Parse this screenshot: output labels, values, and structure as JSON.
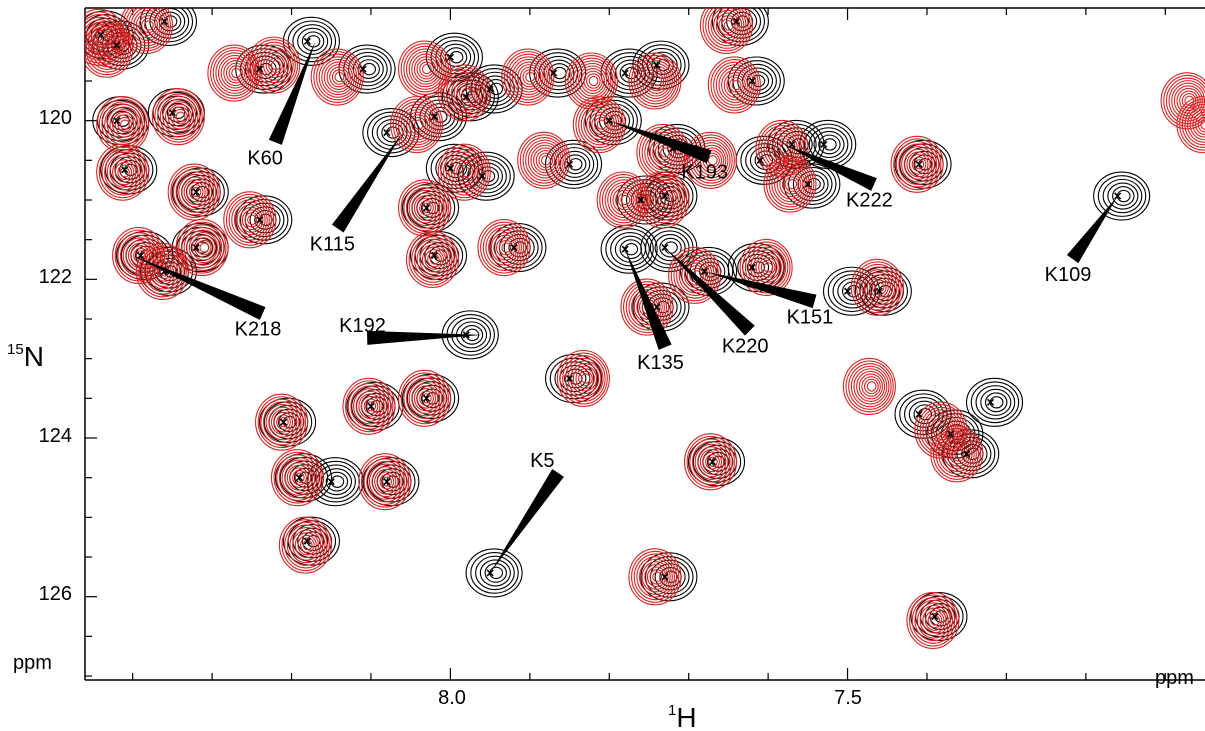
{
  "chart_data": {
    "type": "scatter",
    "title": "",
    "x_axis": {
      "label_sup": "1",
      "label_main": "H",
      "unit": "ppm",
      "range": [
        8.46,
        7.05
      ],
      "ticks": [
        {
          "value": 8.0,
          "label": "8.0"
        },
        {
          "value": 7.5,
          "label": "7.5"
        }
      ],
      "minor_step": 0.1
    },
    "y_axis": {
      "label_sup": "15",
      "label_main": "N",
      "unit": "ppm",
      "range": [
        118.58,
        127.05
      ],
      "ticks": [
        {
          "value": 120,
          "label": "120"
        },
        {
          "value": 122,
          "label": "122"
        },
        {
          "value": 124,
          "label": "124"
        },
        {
          "value": 126,
          "label": "126"
        }
      ],
      "minor_step": 0.5
    },
    "series": [
      {
        "color": "#000000",
        "peaks": [
          [
            8.36,
            118.75
          ],
          [
            8.44,
            118.92
          ],
          [
            8.42,
            119.05
          ],
          [
            8.24,
            119.35
          ],
          [
            8.18,
            119.0
          ],
          [
            8.11,
            119.35
          ],
          [
            8.0,
            119.2
          ],
          [
            7.95,
            119.6
          ],
          [
            7.87,
            119.4
          ],
          [
            7.78,
            119.4
          ],
          [
            7.74,
            119.3
          ],
          [
            7.64,
            118.75
          ],
          [
            7.62,
            119.5
          ],
          [
            8.42,
            120.0
          ],
          [
            8.35,
            119.9
          ],
          [
            8.02,
            119.95
          ],
          [
            7.98,
            119.7
          ],
          [
            8.08,
            120.15
          ],
          [
            7.8,
            120.0
          ],
          [
            7.72,
            120.35
          ],
          [
            7.61,
            120.5
          ],
          [
            7.53,
            120.3
          ],
          [
            7.57,
            120.3
          ],
          [
            7.55,
            120.8
          ],
          [
            8.32,
            120.9
          ],
          [
            8.24,
            121.25
          ],
          [
            8.41,
            120.62
          ],
          [
            8.03,
            121.1
          ],
          [
            8.0,
            120.6
          ],
          [
            7.96,
            120.7
          ],
          [
            7.85,
            120.55
          ],
          [
            7.76,
            121.0
          ],
          [
            7.73,
            120.95
          ],
          [
            7.41,
            120.55
          ],
          [
            8.32,
            121.6
          ],
          [
            8.36,
            121.9
          ],
          [
            8.39,
            121.7
          ],
          [
            8.02,
            121.7
          ],
          [
            7.92,
            121.6
          ],
          [
            7.78,
            121.62
          ],
          [
            7.73,
            121.6
          ],
          [
            7.68,
            121.9
          ],
          [
            7.62,
            121.85
          ],
          [
            7.5,
            122.15
          ],
          [
            7.46,
            122.15
          ],
          [
            7.16,
            120.95
          ],
          [
            7.98,
            122.7
          ],
          [
            7.85,
            123.25
          ],
          [
            7.74,
            122.35
          ],
          [
            8.21,
            123.8
          ],
          [
            8.1,
            123.6
          ],
          [
            8.03,
            123.5
          ],
          [
            8.19,
            124.5
          ],
          [
            8.15,
            124.55
          ],
          [
            8.08,
            124.55
          ],
          [
            7.67,
            124.3
          ],
          [
            7.37,
            123.95
          ],
          [
            7.41,
            123.7
          ],
          [
            7.35,
            124.2
          ],
          [
            7.32,
            123.55
          ],
          [
            8.18,
            125.3
          ],
          [
            7.95,
            125.7
          ],
          [
            7.73,
            125.75
          ],
          [
            7.39,
            126.25
          ]
        ]
      },
      {
        "color": "#dd2222",
        "peaks": [
          [
            8.38,
            118.8
          ],
          [
            8.44,
            118.95
          ],
          [
            8.43,
            119.1
          ],
          [
            8.27,
            119.4
          ],
          [
            8.22,
            119.3
          ],
          [
            8.14,
            119.45
          ],
          [
            8.03,
            119.35
          ],
          [
            7.98,
            119.65
          ],
          [
            7.9,
            119.45
          ],
          [
            7.82,
            119.5
          ],
          [
            7.74,
            119.5
          ],
          [
            7.65,
            118.8
          ],
          [
            7.64,
            119.55
          ],
          [
            8.41,
            120.05
          ],
          [
            8.34,
            119.95
          ],
          [
            8.04,
            120.05
          ],
          [
            7.81,
            120.05
          ],
          [
            7.73,
            120.4
          ],
          [
            7.67,
            120.5
          ],
          [
            7.58,
            120.35
          ],
          [
            7.57,
            120.8
          ],
          [
            8.32,
            120.9
          ],
          [
            8.25,
            121.25
          ],
          [
            8.41,
            120.65
          ],
          [
            8.03,
            121.1
          ],
          [
            7.98,
            120.65
          ],
          [
            7.88,
            120.5
          ],
          [
            7.78,
            121.0
          ],
          [
            7.73,
            121.0
          ],
          [
            7.41,
            120.55
          ],
          [
            8.31,
            121.6
          ],
          [
            8.36,
            121.9
          ],
          [
            8.39,
            121.7
          ],
          [
            8.02,
            121.75
          ],
          [
            7.93,
            121.6
          ],
          [
            7.69,
            121.95
          ],
          [
            7.6,
            121.85
          ],
          [
            7.46,
            122.1
          ],
          [
            7.83,
            123.25
          ],
          [
            7.75,
            122.35
          ],
          [
            8.21,
            123.8
          ],
          [
            8.1,
            123.6
          ],
          [
            8.03,
            123.5
          ],
          [
            8.19,
            124.5
          ],
          [
            8.08,
            124.55
          ],
          [
            7.67,
            124.3
          ],
          [
            7.38,
            123.9
          ],
          [
            7.36,
            124.2
          ],
          [
            7.47,
            123.35
          ],
          [
            8.18,
            125.35
          ],
          [
            7.74,
            125.75
          ],
          [
            7.39,
            126.3
          ],
          [
            7.07,
            119.75
          ],
          [
            7.05,
            120.05
          ]
        ]
      }
    ],
    "annotations": [
      {
        "text": "K60",
        "peak": [
          8.17,
          119.0
        ]
      },
      {
        "text": "K115",
        "peak": [
          8.06,
          120.15
        ]
      },
      {
        "text": "K193",
        "peak": [
          7.8,
          120.0
        ]
      },
      {
        "text": "K222",
        "peak": [
          7.58,
          120.3
        ]
      },
      {
        "text": "K218",
        "peak": [
          8.4,
          121.7
        ]
      },
      {
        "text": "K192",
        "peak": [
          7.96,
          122.7
        ]
      },
      {
        "text": "K135",
        "peak": [
          7.78,
          121.62
        ]
      },
      {
        "text": "K220",
        "peak": [
          7.73,
          121.6
        ]
      },
      {
        "text": "K151",
        "peak": [
          7.68,
          121.9
        ]
      },
      {
        "text": "K109",
        "peak": [
          7.16,
          120.95
        ]
      },
      {
        "text": "K5",
        "peak": [
          7.95,
          125.7
        ]
      }
    ]
  }
}
